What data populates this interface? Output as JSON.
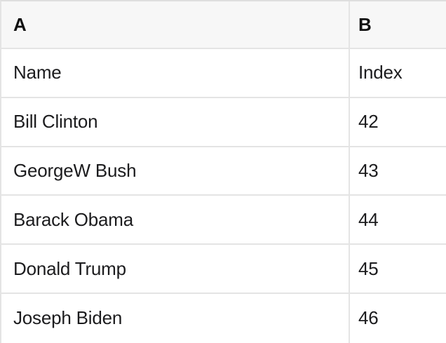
{
  "table": {
    "column_headers": [
      "A",
      "B"
    ],
    "rows": [
      {
        "a": "Name",
        "b": "Index"
      },
      {
        "a": "Bill Clinton",
        "b": "42"
      },
      {
        "a": "GeorgeW Bush",
        "b": "43"
      },
      {
        "a": "Barack Obama",
        "b": "44"
      },
      {
        "a": "Donald Trump",
        "b": "45"
      },
      {
        "a": "Joseph Biden",
        "b": "46"
      }
    ]
  },
  "colors": {
    "header_bg": "#f7f7f7",
    "row_bg": "#ffffff",
    "grid_line": "#e4e4e4",
    "top_border": "#dedede",
    "header_text": "#111111",
    "cell_text": "#1c1c1e"
  }
}
